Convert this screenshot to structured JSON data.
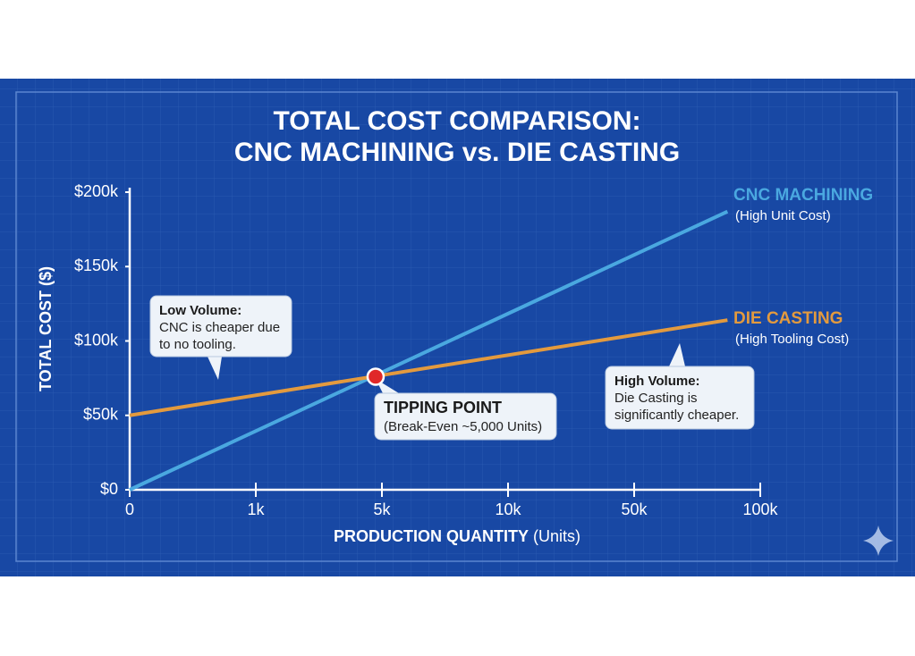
{
  "chart_data": {
    "type": "line",
    "title_lines": [
      "TOTAL COST COMPARISON:",
      "CNC MACHINING vs. DIE CASTING"
    ],
    "x_label": "PRODUCTION QUANTITY",
    "x_label_unit": "(Units)",
    "y_label": "TOTAL COST ($)",
    "x": [
      0,
      87000
    ],
    "series": [
      {
        "name": "CNC MACHINING",
        "note": "(High Unit Cost)",
        "color": "#4aa8e0",
        "values": [
          0,
          187000
        ]
      },
      {
        "name": "DIE CASTING",
        "note": "(High Tooling Cost)",
        "color": "#e39a3e",
        "values": [
          50000,
          114000
        ]
      }
    ],
    "ylim": [
      0,
      200000
    ],
    "yticks": [
      {
        "value": 0,
        "label": "$0"
      },
      {
        "value": 50000,
        "label": "$50k"
      },
      {
        "value": 100000,
        "label": "$100k"
      },
      {
        "value": 150000,
        "label": "$150k"
      },
      {
        "value": 200000,
        "label": "$200k"
      }
    ],
    "xticks": [
      0,
      {
        "value": 1000,
        "label": "1k"
      },
      {
        "value": 5000,
        "label": "5k"
      },
      {
        "value": 10000,
        "label": "10k"
      },
      {
        "value": 50000,
        "label": "50k"
      },
      {
        "value": 100000,
        "label": "100k"
      }
    ],
    "annotations": [
      {
        "title": "Low Volume:",
        "lines": [
          "CNC is cheaper due",
          "to no tooling."
        ]
      },
      {
        "title": "TIPPING POINT",
        "lines": [
          "(Break-Even ~5,000 Units)"
        ],
        "x": 4800,
        "y": 76000
      },
      {
        "title": "High Volume:",
        "lines": [
          "Die Casting is",
          "significantly cheaper."
        ]
      }
    ]
  }
}
